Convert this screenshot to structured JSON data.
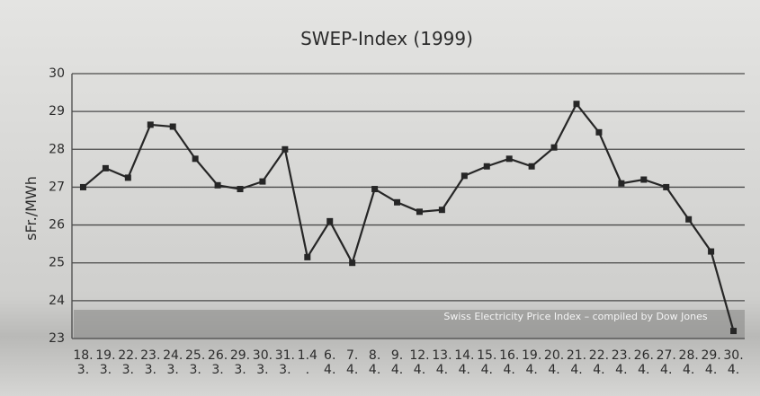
{
  "chart_data": {
    "type": "line",
    "title": "SWEP-Index (1999)",
    "ylabel": "sFr./MWh",
    "annotation": "Swiss Electricity Price Index  – compiled by Dow Jones",
    "categories": [
      "18.\n3.",
      "19.\n3.",
      "22.\n3.",
      "23.\n3.",
      "24.\n3.",
      "25.\n3.",
      "26.\n3.",
      "29.\n3.",
      "30.\n3.",
      "31.\n3.",
      "1.4\n.",
      "6.\n4.",
      "7.\n4.",
      "8.\n4.",
      "9.\n4.",
      "12.\n4.",
      "13.\n4.",
      "14.\n4.",
      "15.\n4.",
      "16.\n4.",
      "19.\n4.",
      "20.\n4.",
      "21.\n4.",
      "22.\n4.",
      "23.\n4.",
      "26.\n4.",
      "27.\n4.",
      "28.\n4.",
      "29.\n4.",
      "30.\n4."
    ],
    "values": [
      27.0,
      27.5,
      27.25,
      28.65,
      28.6,
      27.75,
      27.05,
      26.95,
      27.15,
      28.0,
      25.15,
      26.1,
      25.0,
      26.95,
      26.6,
      26.35,
      26.4,
      27.3,
      27.55,
      27.75,
      27.55,
      28.05,
      29.2,
      28.45,
      27.1,
      27.2,
      27.0,
      26.15,
      25.3,
      23.2
    ],
    "color": "#262626",
    "ylim": [
      23,
      30
    ],
    "yticks": [
      23,
      24,
      25,
      26,
      27,
      28,
      29,
      30
    ],
    "grid": true
  }
}
